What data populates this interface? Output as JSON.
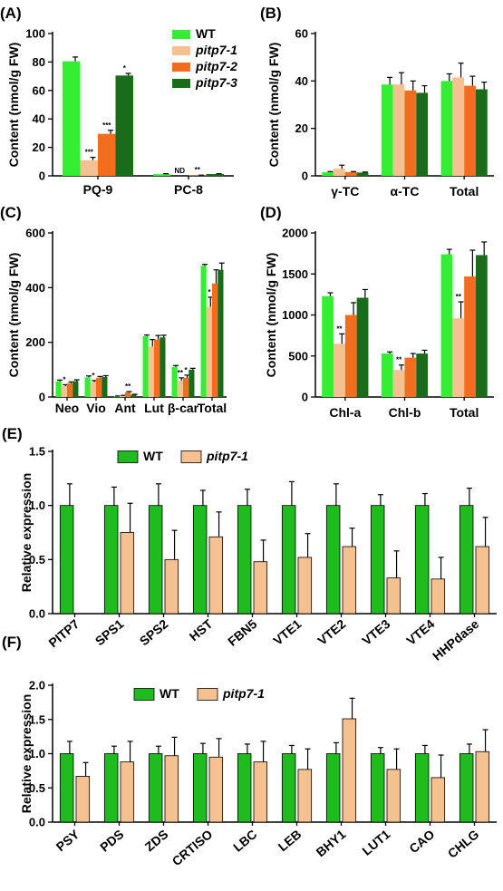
{
  "chart_data": [
    {
      "id": "A",
      "panel_label": "(A)",
      "type": "bar",
      "ylabel": "Content (nmol/g FW)",
      "ylim": [
        0,
        100
      ],
      "yticks": [
        0,
        20,
        40,
        60,
        80,
        100
      ],
      "categories": [
        "PQ-9",
        "PC-8"
      ],
      "legend": {
        "position": "top-right"
      },
      "series": [
        {
          "name": "WT",
          "color": "#33ee33",
          "values": [
            80.5,
            1.2
          ],
          "errors": [
            3,
            0.3
          ]
        },
        {
          "name": "pitp7-1",
          "color": "#f6c190",
          "values": [
            11,
            0
          ],
          "errors": [
            2,
            0
          ]
        },
        {
          "name": "pitp7-2",
          "color": "#f26e1e",
          "values": [
            29.5,
            0.4
          ],
          "errors": [
            2.5,
            0.1
          ]
        },
        {
          "name": "pitp7-3",
          "color": "#1a6b1a",
          "values": [
            70.5,
            1.3
          ],
          "errors": [
            1.5,
            0.2
          ]
        }
      ],
      "annotations": [
        {
          "category": 0,
          "series": 1,
          "text": "***"
        },
        {
          "category": 0,
          "series": 2,
          "text": "***"
        },
        {
          "category": 0,
          "series": 3,
          "text": "*"
        },
        {
          "category": 1,
          "series": 1,
          "text": "ND"
        },
        {
          "category": 1,
          "series": 2,
          "text": "**"
        }
      ]
    },
    {
      "id": "B",
      "panel_label": "(B)",
      "type": "bar",
      "ylabel": "Content (nmol/g FW)",
      "ylim": [
        0,
        60
      ],
      "yticks": [
        0,
        20,
        40,
        60
      ],
      "categories": [
        "γ-TC",
        "α-TC",
        "Total"
      ],
      "series": [
        {
          "color": "#33ee33",
          "values": [
            1.5,
            38.5,
            40
          ],
          "errors": [
            0.3,
            3,
            3
          ]
        },
        {
          "color": "#f6c190",
          "values": [
            3,
            38.5,
            41.5
          ],
          "errors": [
            1.5,
            5,
            6
          ]
        },
        {
          "color": "#f26e1e",
          "values": [
            1.6,
            36,
            38
          ],
          "errors": [
            0.2,
            4,
            4
          ]
        },
        {
          "color": "#1a6b1a",
          "values": [
            1.4,
            35,
            36.5
          ],
          "errors": [
            0.2,
            3,
            3
          ]
        }
      ],
      "annotations": []
    },
    {
      "id": "C",
      "panel_label": "(C)",
      "type": "bar",
      "ylabel": "Content (nmol/g FW)",
      "ylim": [
        0,
        600
      ],
      "yticks": [
        0,
        200,
        400,
        600
      ],
      "categories": [
        "Neo",
        "Vio",
        "Ant",
        "Lut",
        "β-car",
        "Total"
      ],
      "series": [
        {
          "color": "#33ee33",
          "values": [
            57,
            72,
            3,
            222,
            110,
            480
          ],
          "errors": [
            5,
            5,
            1,
            5,
            5,
            5
          ]
        },
        {
          "color": "#f6c190",
          "values": [
            40,
            55,
            5,
            185,
            60,
            330
          ],
          "errors": [
            5,
            5,
            1,
            25,
            10,
            35
          ]
        },
        {
          "color": "#f26e1e",
          "values": [
            50,
            70,
            17,
            210,
            70,
            415
          ],
          "errors": [
            5,
            5,
            3,
            15,
            10,
            50
          ]
        },
        {
          "color": "#1a6b1a",
          "values": [
            58,
            73,
            8,
            218,
            100,
            465
          ],
          "errors": [
            5,
            5,
            2,
            8,
            5,
            25
          ]
        }
      ],
      "annotations": [
        {
          "category": 0,
          "series": 1,
          "text": "*"
        },
        {
          "category": 1,
          "series": 1,
          "text": "*"
        },
        {
          "category": 2,
          "series": 2,
          "text": "**"
        },
        {
          "category": 4,
          "series": 1,
          "text": "**"
        },
        {
          "category": 4,
          "series": 2,
          "text": "*"
        },
        {
          "category": 5,
          "series": 1,
          "text": "*"
        }
      ]
    },
    {
      "id": "D",
      "panel_label": "(D)",
      "type": "bar",
      "ylabel": "Content (nmol/g FW)",
      "ylim": [
        0,
        2000
      ],
      "yticks": [
        0,
        500,
        1000,
        1500,
        2000
      ],
      "categories": [
        "Chl-a",
        "Chl-b",
        "Total"
      ],
      "series": [
        {
          "color": "#33ee33",
          "values": [
            1230,
            530,
            1740
          ],
          "errors": [
            40,
            20,
            60
          ]
        },
        {
          "color": "#f6c190",
          "values": [
            650,
            330,
            960
          ],
          "errors": [
            120,
            60,
            200
          ]
        },
        {
          "color": "#f26e1e",
          "values": [
            1000,
            480,
            1470
          ],
          "errors": [
            150,
            50,
            320
          ]
        },
        {
          "color": "#1a6b1a",
          "values": [
            1210,
            530,
            1730
          ],
          "errors": [
            100,
            40,
            160
          ]
        }
      ],
      "annotations": [
        {
          "category": 0,
          "series": 1,
          "text": "**"
        },
        {
          "category": 1,
          "series": 1,
          "text": "**"
        },
        {
          "category": 2,
          "series": 1,
          "text": "**"
        }
      ]
    },
    {
      "id": "E",
      "panel_label": "(E)",
      "type": "bar",
      "ylabel": "Relative expression",
      "ylim": [
        0,
        1.5
      ],
      "yticks": [
        0.0,
        0.5,
        1.0,
        1.5
      ],
      "categories": [
        "PITP7",
        "SPS1",
        "SPS2",
        "HST",
        "FBN5",
        "VTE1",
        "VTE2",
        "VTE3",
        "VTE4",
        "HHPdase"
      ],
      "legend": {
        "position": "top-left"
      },
      "series": [
        {
          "name": "WT",
          "color": "#1fbb1f",
          "values": [
            1,
            1,
            1,
            1,
            1,
            1,
            1,
            1,
            1,
            1
          ],
          "errors": [
            0.2,
            0.17,
            0.2,
            0.14,
            0.15,
            0.22,
            0.2,
            0.1,
            0.11,
            0.16
          ]
        },
        {
          "name": "pitp7-1",
          "color": "#f6c190",
          "values": [
            0,
            0.75,
            0.5,
            0.71,
            0.48,
            0.52,
            0.62,
            0.33,
            0.32,
            0.62
          ],
          "errors": [
            0,
            0.27,
            0.27,
            0.23,
            0.2,
            0.22,
            0.17,
            0.25,
            0.2,
            0.27
          ]
        }
      ]
    },
    {
      "id": "F",
      "panel_label": "(F)",
      "type": "bar",
      "ylabel": "Relative expression",
      "ylim": [
        0,
        2.0
      ],
      "yticks": [
        0.0,
        0.5,
        1.0,
        1.5,
        2.0
      ],
      "categories": [
        "PSY",
        "PDS",
        "ZDS",
        "CRTISO",
        "LBC",
        "LEB",
        "BHY1",
        "LUT1",
        "CAO",
        "CHLG"
      ],
      "legend": {
        "position": "top-left"
      },
      "series": [
        {
          "name": "WT",
          "color": "#1fbb1f",
          "values": [
            1,
            1,
            1,
            1,
            1,
            1,
            1,
            1,
            1,
            1
          ],
          "errors": [
            0.18,
            0.11,
            0.11,
            0.15,
            0.14,
            0.12,
            0.16,
            0.09,
            0.12,
            0.14
          ]
        },
        {
          "name": "pitp7-1",
          "color": "#f6c190",
          "values": [
            0.67,
            0.88,
            0.97,
            0.95,
            0.88,
            0.77,
            1.51,
            0.77,
            0.65,
            1.03
          ],
          "errors": [
            0.2,
            0.3,
            0.27,
            0.27,
            0.3,
            0.3,
            0.3,
            0.3,
            0.33,
            0.32
          ]
        }
      ]
    }
  ]
}
